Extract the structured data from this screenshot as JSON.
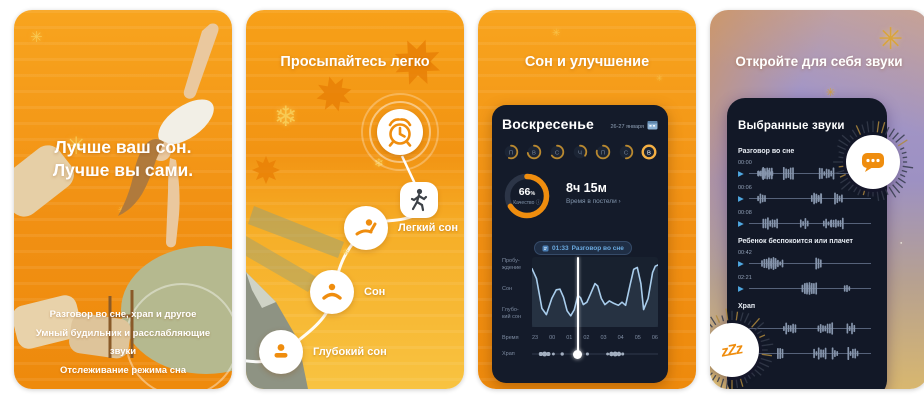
{
  "panel1": {
    "title_line1": "Лучше ваш сон.",
    "title_line2": "Лучше вы сами.",
    "features": [
      "Разговор во сне, храп и другое",
      "Умный будильник и расслабляющие звуки",
      "Отслеживание режима сна"
    ]
  },
  "panel2": {
    "title": "Просыпайтесь легко",
    "stages": [
      {
        "label": "Легкий сон",
        "icon": "person-waking-icon"
      },
      {
        "label": "Сон",
        "icon": "person-resting-icon"
      },
      {
        "label": "Глубокий сон",
        "icon": "person-deep-sleep-icon"
      }
    ]
  },
  "panel3": {
    "title": "Сон и улучшение",
    "phone": {
      "day_title": "Воскресенье",
      "date_range": "26-27 января",
      "week": [
        {
          "letter": "П",
          "arc": 0.55
        },
        {
          "letter": "В",
          "arc": 0.72
        },
        {
          "letter": "С",
          "arc": 0.65
        },
        {
          "letter": "Ч",
          "arc": 0.35
        },
        {
          "letter": "П",
          "arc": 0.78
        },
        {
          "letter": "С",
          "arc": 0.5
        },
        {
          "letter": "В",
          "arc": 1.0
        }
      ],
      "selected_day_index": 6,
      "quality_percent": "66",
      "quality_unit": "%",
      "quality_label": "Качество",
      "info_icon": "ⓘ",
      "time_in_bed_value": "8ч 15м",
      "time_in_bed_label": "Время в постели",
      "chevron": "›",
      "tooltip_time": "01:33",
      "tooltip_label": "Разговор во сне",
      "y_axis_labels": [
        "Пробу-\nждение",
        "Сон",
        "Глубо-\nкий сон"
      ],
      "x_axis_label": "Время",
      "x_ticks": [
        "23",
        "00",
        "01",
        "02",
        "03",
        "04",
        "05",
        "06"
      ],
      "snore_label": "Храп",
      "hypnogram": {
        "type": "line",
        "x_unit": "hours_from_23:00",
        "x_range": [
          0,
          7
        ],
        "stage_levels": {
          "awake": 0,
          "sleep": 50,
          "deep": 100
        },
        "marker_x": 2.55,
        "points": [
          [
            0,
            14
          ],
          [
            0.25,
            30
          ],
          [
            0.55,
            78
          ],
          [
            0.8,
            88
          ],
          [
            1.1,
            62
          ],
          [
            1.35,
            48
          ],
          [
            1.55,
            47
          ],
          [
            1.75,
            60
          ],
          [
            1.95,
            82
          ],
          [
            2.15,
            90
          ],
          [
            2.35,
            80
          ],
          [
            2.55,
            57
          ],
          [
            2.7,
            61
          ],
          [
            2.85,
            72
          ],
          [
            3.05,
            68
          ],
          [
            3.25,
            55
          ],
          [
            3.5,
            38
          ],
          [
            3.65,
            42
          ],
          [
            3.85,
            62
          ],
          [
            4.05,
            72
          ],
          [
            4.3,
            66
          ],
          [
            4.55,
            70
          ],
          [
            4.8,
            73
          ],
          [
            5.0,
            68
          ],
          [
            5.2,
            73
          ],
          [
            5.45,
            40
          ],
          [
            5.65,
            15
          ],
          [
            5.85,
            12
          ],
          [
            6.05,
            38
          ],
          [
            6.2,
            80
          ],
          [
            6.45,
            62
          ],
          [
            6.7,
            20
          ],
          [
            6.85,
            10
          ],
          [
            7,
            8
          ]
        ]
      }
    }
  },
  "panel4": {
    "title": "Откройте для себя звуки",
    "phone": {
      "heading": "Выбранные звуки",
      "sections": [
        {
          "label": "Разговор во сне",
          "clips": [
            {
              "time": "00:00"
            },
            {
              "time": "00:06"
            },
            {
              "time": "00:08"
            }
          ]
        },
        {
          "label": "Ребенок беспокоится или плачет",
          "clips": [
            {
              "time": "00:42"
            },
            {
              "time": "02:21"
            }
          ]
        },
        {
          "label": "Храп",
          "clips": [
            {
              "time": ""
            },
            {
              "time": ""
            }
          ]
        }
      ]
    },
    "badges": {
      "zzz_text": "zZz"
    }
  },
  "colors": {
    "accent_orange": "#ef8d0e",
    "gold_arc": "#b98930",
    "gold_arc_selected": "#f5b043",
    "phone_bg": "#141b2a",
    "hypnogram_line": "#a9cdec",
    "play_blue": "#4fa7e0"
  }
}
